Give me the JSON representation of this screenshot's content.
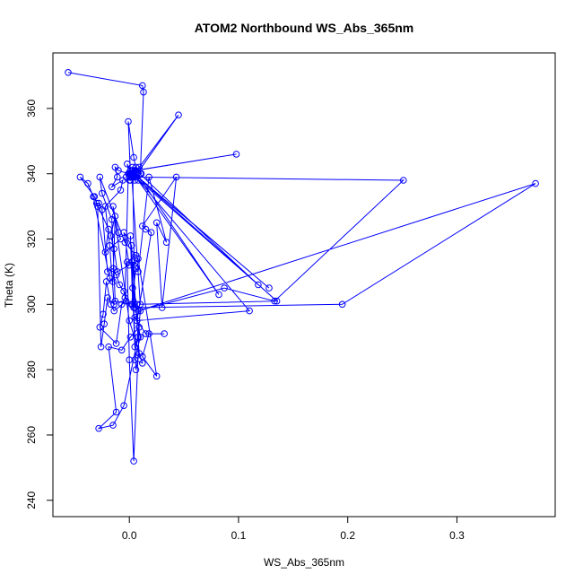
{
  "chart_data": {
    "type": "line",
    "title": "ATOM2 Northbound WS_Abs_365nm",
    "xlabel": "WS_Abs_365nm",
    "ylabel": "Theta (K)",
    "xlim": [
      -0.07,
      0.39
    ],
    "ylim": [
      235,
      377
    ],
    "xticks": [
      0.0,
      0.1,
      0.2,
      0.3
    ],
    "xtick_labels": [
      "0.0",
      "0.1",
      "0.2",
      "0.3"
    ],
    "yticks": [
      240,
      260,
      280,
      300,
      320,
      340,
      360
    ],
    "ytick_labels": [
      "240",
      "260",
      "280",
      "300",
      "320",
      "340",
      "360"
    ],
    "grid": false,
    "color": "#0000ff",
    "series": [
      {
        "x": [
          -0.056,
          0.012,
          0.013,
          0.01,
          0.008,
          0.006,
          0.004,
          0.002,
          0.0,
          0.003,
          0.005,
          0.001,
          -0.001,
          0.004,
          0.007,
          0.045,
          0.009,
          0.011,
          0.006,
          0.003,
          0.002,
          -0.002,
          0.001,
          0.004,
          0.006,
          0.098,
          0.005,
          0.003,
          0.002,
          0.004,
          0.001,
          0.0,
          0.003,
          0.251,
          0.133,
          0.087,
          0.008,
          0.372,
          0.195,
          0.005,
          0.003,
          0.118,
          0.002,
          0.0,
          -0.003,
          0.005,
          0.082,
          0.006,
          0.002,
          0.01,
          0.135,
          0.004,
          0.128,
          0.001,
          0.11,
          0.007,
          0.02,
          0.015,
          0.012,
          0.043,
          0.03,
          0.025,
          0.034,
          0.018,
          0.008,
          0.006,
          0.002,
          0.004,
          0.007,
          0.003,
          0.01,
          0.005,
          0.012,
          0.0,
          -0.015,
          -0.01,
          -0.008,
          -0.022,
          -0.019,
          -0.03,
          -0.028,
          -0.025,
          -0.02,
          -0.015,
          -0.012,
          -0.009,
          -0.005,
          -0.003,
          -0.014,
          -0.017,
          -0.021,
          -0.024,
          -0.027,
          -0.012,
          -0.007,
          -0.004,
          -0.001,
          -0.01,
          -0.013,
          -0.011,
          -0.016,
          -0.006,
          -0.008,
          -0.022,
          -0.018,
          -0.014,
          -0.02,
          -0.023,
          -0.026,
          -0.029,
          -0.032,
          -0.045,
          -0.038,
          -0.033,
          -0.018,
          -0.015,
          -0.013,
          -0.017,
          -0.014,
          -0.011,
          0.0,
          -0.005,
          0.002,
          0.006,
          0.009,
          0.003,
          0.004,
          0.008,
          0.025,
          0.012,
          0.018,
          0.032,
          0.015,
          0.005,
          0.01,
          0.008,
          -0.005,
          -0.015,
          -0.028,
          -0.012,
          -0.019,
          -0.007,
          0.001,
          0.009,
          0.004,
          0.0,
          -0.002,
          0.006,
          -0.004,
          -0.027,
          -0.025,
          -0.016,
          -0.013,
          0.003,
          0.001,
          0.005,
          0.008
        ],
        "y": [
          371,
          367,
          365,
          340,
          338,
          342,
          340,
          339,
          340,
          341,
          338,
          340,
          356,
          345,
          340,
          358,
          342,
          340,
          339,
          341,
          340,
          343,
          338,
          339,
          341,
          346,
          341,
          340,
          339,
          340,
          341,
          340,
          339,
          338,
          301,
          305,
          298,
          337,
          300,
          299,
          342,
          306,
          340,
          338,
          339,
          341,
          303,
          339,
          340,
          300,
          301,
          340,
          305,
          341,
          298,
          295,
          322,
          323,
          324,
          339,
          299,
          325,
          319,
          339,
          310,
          311,
          300,
          299,
          300,
          305,
          290,
          283,
          282,
          295,
          330,
          322,
          320,
          316,
          323,
          331,
          331,
          329,
          310,
          311,
          309,
          306,
          304,
          301,
          298,
          300,
          307,
          297,
          293,
          288,
          300,
          302,
          340,
          341,
          342,
          339,
          336,
          338,
          335,
          330,
          318,
          300,
          302,
          294,
          287,
          330,
          333,
          339,
          337,
          333,
          308,
          307,
          327,
          321,
          317,
          310,
          312,
          322,
          318,
          280,
          285,
          313,
          312,
          314,
          278,
          284,
          291,
          291,
          291,
          296,
          298,
          290,
          269,
          263,
          262,
          267,
          287,
          286,
          290,
          293,
          252,
          283,
          313,
          315,
          319,
          339,
          334,
          326,
          301,
          300,
          321,
          287,
          290
        ]
      }
    ]
  }
}
